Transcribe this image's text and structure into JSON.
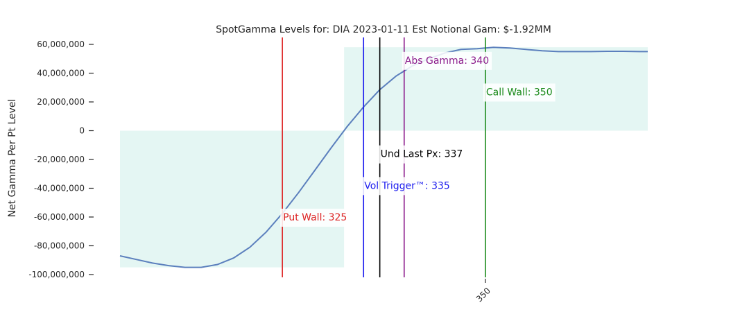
{
  "chart_data": {
    "type": "line",
    "title": "SpotGamma Levels for: DIA  2023-01-11 Est Notional Gam: $-1.92MM",
    "xlabel": "",
    "ylabel": "Net Gamma Per Pt Level",
    "xlim": [
      305,
      370
    ],
    "ylim": [
      -100000000,
      60000000
    ],
    "yticks": [
      60000000,
      40000000,
      20000000,
      0,
      -20000000,
      -40000000,
      -60000000,
      -80000000,
      -100000000
    ],
    "ytick_labels": [
      "60,000,000",
      "40,000,000",
      "20,000,000",
      "0",
      "-20,000,000",
      "-40,000,000",
      "-60,000,000",
      "-80,000,000",
      "-100,000,000"
    ],
    "xticks": [
      350
    ],
    "xtick_labels": [
      "350"
    ],
    "grid": false,
    "fill_color": "#e4f6f3",
    "line_color": "#5b7fbd",
    "series": [
      {
        "x": [
          305,
          307,
          309,
          311,
          313,
          315,
          317,
          319,
          321,
          323,
          325,
          327,
          329,
          331,
          333,
          335,
          337,
          339,
          341,
          343,
          345,
          347,
          349,
          351,
          353,
          355,
          357,
          359,
          361,
          363,
          365,
          367,
          369,
          370
        ],
        "y": [
          -87000000,
          -89500000,
          -92000000,
          -93800000,
          -95000000,
          -95000000,
          -93000000,
          -88500000,
          -81000000,
          -70500000,
          -57500000,
          -43000000,
          -27500000,
          -12000000,
          3000000,
          16500000,
          28500000,
          38000000,
          45000000,
          50000000,
          54000000,
          56500000,
          57000000,
          58000000,
          57500000,
          56500000,
          55500000,
          55000000,
          55000000,
          55000000,
          55200000,
          55200000,
          55000000,
          55000000
        ]
      }
    ],
    "levels": [
      {
        "name": "put_wall",
        "label": "Put Wall: 325",
        "x": 325,
        "color": "#dd2222",
        "label_y": -60000000
      },
      {
        "name": "vol_trigger",
        "label": "Vol Trigger™: 335",
        "x": 335,
        "color": "#1a1aee",
        "label_y": -38000000
      },
      {
        "name": "und_last_px",
        "label": "Und Last Px: 337",
        "x": 337,
        "color": "#000000",
        "label_y": -16000000
      },
      {
        "name": "abs_gamma",
        "label": "Abs Gamma: 340",
        "x": 340,
        "color": "#8b1a8b",
        "label_y": 49000000
      },
      {
        "name": "call_wall",
        "label": "Call Wall: 350",
        "x": 350,
        "color": "#1a8a1a",
        "label_y": 27000000
      }
    ]
  }
}
